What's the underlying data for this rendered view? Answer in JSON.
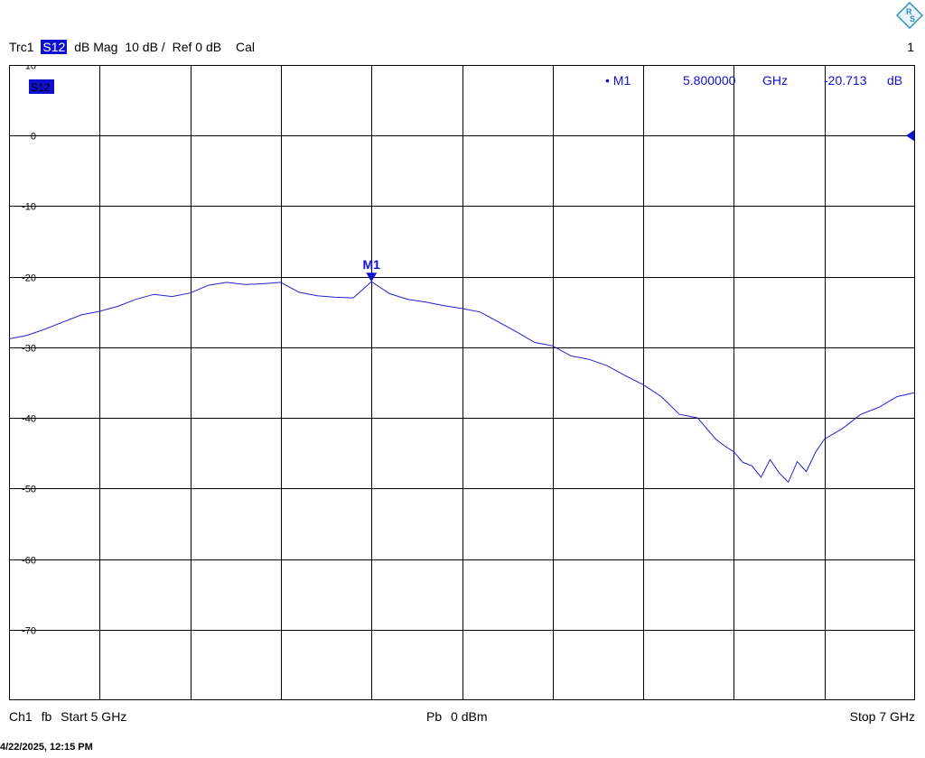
{
  "header": {
    "trace": "Trc1",
    "param": "S12",
    "format": "dB Mag",
    "scale": "10 dB /",
    "ref": "Ref 0 dB",
    "cal": "Cal",
    "page": "1"
  },
  "trace_badge": "S12",
  "marker_readout": {
    "name": "M1",
    "freq": "5.800000",
    "freq_unit": "GHz",
    "value": "-20.713",
    "value_unit": "dB"
  },
  "footer": {
    "channel": "Ch1",
    "fb": "fb",
    "start_label": "Start",
    "start_value": "5 GHz",
    "power_label": "Pb",
    "power_value": "0 dBm",
    "stop_label": "Stop",
    "stop_value": "7 GHz"
  },
  "timestamp": "4/22/2025, 12:15 PM",
  "colors": {
    "trace": "#2020d0",
    "grid": "#000000",
    "badge": "#1010d0",
    "marker": "#1010d0"
  },
  "chart_data": {
    "type": "line",
    "xlim": [
      5.0,
      7.0
    ],
    "ylim": [
      -80,
      10
    ],
    "y_ticks": [
      10,
      0,
      -10,
      -20,
      -30,
      -40,
      -50,
      -60,
      -70
    ],
    "grid": true,
    "ref_level": 0,
    "series": [
      {
        "x": [
          5.0,
          5.04,
          5.08,
          5.12,
          5.16,
          5.2,
          5.24,
          5.28,
          5.32,
          5.36,
          5.4,
          5.44,
          5.48,
          5.52,
          5.56,
          5.6,
          5.64,
          5.68,
          5.72,
          5.76,
          5.8,
          5.84,
          5.88,
          5.92,
          5.96,
          6.0,
          6.04,
          6.08,
          6.12,
          6.16,
          6.2,
          6.24,
          6.28,
          6.32,
          6.36,
          6.4,
          6.44,
          6.48,
          6.52,
          6.56,
          6.58,
          6.6,
          6.62,
          6.64,
          6.66,
          6.68,
          6.7,
          6.72,
          6.74,
          6.76,
          6.78,
          6.8,
          6.84,
          6.88,
          6.92,
          6.96,
          7.0
        ],
        "y": [
          -28.8,
          -28.3,
          -27.4,
          -26.4,
          -25.4,
          -24.9,
          -24.2,
          -23.2,
          -22.5,
          -22.8,
          -22.3,
          -21.2,
          -20.8,
          -21.1,
          -21.0,
          -20.8,
          -22.2,
          -22.7,
          -22.9,
          -23.0,
          -20.7,
          -22.4,
          -23.2,
          -23.6,
          -24.1,
          -24.5,
          -25.0,
          -26.4,
          -27.8,
          -29.3,
          -29.8,
          -31.2,
          -31.7,
          -32.6,
          -34.0,
          -35.3,
          -37.0,
          -39.5,
          -40.0,
          -43.0,
          -44.0,
          -44.8,
          -46.3,
          -46.8,
          -48.4,
          -45.9,
          -47.8,
          -49.1,
          -46.2,
          -47.6,
          -44.9,
          -43.0,
          -41.5,
          -39.5,
          -38.5,
          -37.0,
          -36.4
        ]
      }
    ],
    "markers": [
      {
        "name": "M1",
        "x": 5.8,
        "y": -20.713
      }
    ]
  }
}
